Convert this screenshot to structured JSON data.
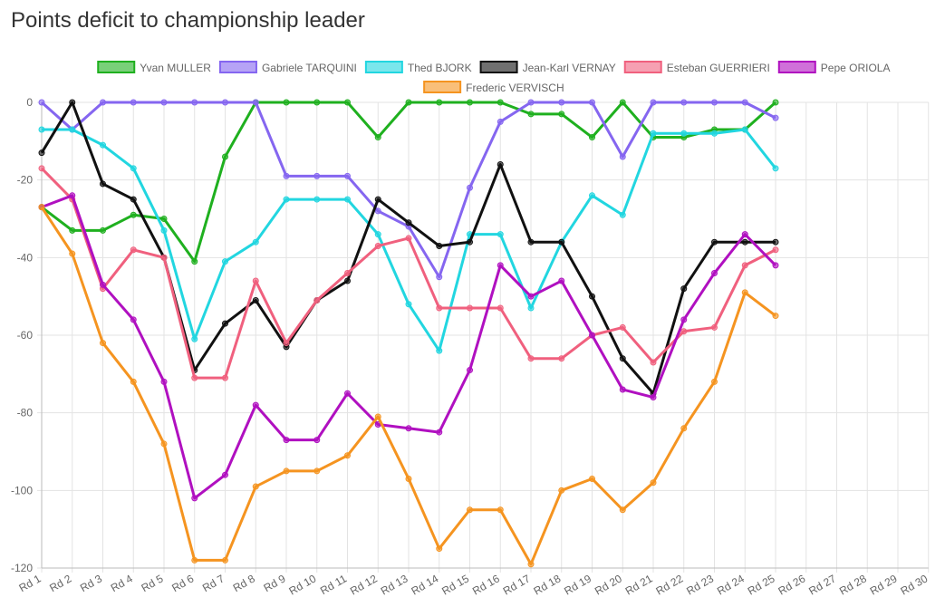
{
  "chart_data": {
    "type": "line",
    "title": "Points deficit to championship leader",
    "categories": [
      "Rd 1",
      "Rd 2",
      "Rd 3",
      "Rd 4",
      "Rd 5",
      "Rd 6",
      "Rd 7",
      "Rd 8",
      "Rd 9",
      "Rd 10",
      "Rd 11",
      "Rd 12",
      "Rd 13",
      "Rd 14",
      "Rd 15",
      "Rd 16",
      "Rd 17",
      "Rd 18",
      "Rd 19",
      "Rd 20",
      "Rd 21",
      "Rd 22",
      "Rd 23",
      "Rd 24",
      "Rd 25",
      "Rd 26",
      "Rd 27",
      "Rd 28",
      "Rd 29",
      "Rd 30"
    ],
    "ylim": [
      -120,
      0
    ],
    "yticks": [
      0,
      -20,
      -40,
      -60,
      -80,
      -100,
      -120
    ],
    "grid": true,
    "legend": "top",
    "series": [
      {
        "name": "Yvan MULLER",
        "color": "#1fb01f",
        "values": [
          -27,
          -33,
          -33,
          -29,
          -30,
          -41,
          -14,
          0,
          0,
          0,
          0,
          -9,
          0,
          0,
          0,
          0,
          -3,
          -3,
          -9,
          0,
          -9,
          -9,
          -7,
          -7,
          0,
          null,
          null,
          null,
          null,
          null
        ]
      },
      {
        "name": "Gabriele TARQUINI",
        "color": "#8566f0",
        "values": [
          0,
          -7,
          0,
          0,
          0,
          0,
          0,
          0,
          -19,
          -19,
          -19,
          -28,
          -32,
          -45,
          -22,
          -5,
          0,
          0,
          0,
          -14,
          0,
          0,
          0,
          0,
          -4,
          null,
          null,
          null,
          null,
          null
        ]
      },
      {
        "name": "Thed BJORK",
        "color": "#22d6e0",
        "values": [
          -7,
          -7,
          -11,
          -17,
          -33,
          -61,
          -41,
          -36,
          -25,
          -25,
          -25,
          -34,
          -52,
          -64,
          -34,
          -34,
          -53,
          -36,
          -24,
          -29,
          -8,
          -8,
          -8,
          -7,
          -17,
          null,
          null,
          null,
          null,
          null
        ]
      },
      {
        "name": "Jean-Karl VERNAY",
        "color": "#111111",
        "values": [
          -13,
          0,
          -21,
          -25,
          -40,
          -69,
          -57,
          -51,
          -63,
          -51,
          -46,
          -25,
          -31,
          -37,
          -36,
          -16,
          -36,
          -36,
          -50,
          -66,
          -75,
          -48,
          -36,
          -36,
          -36,
          null,
          null,
          null,
          null,
          null
        ]
      },
      {
        "name": "Esteban GUERRIERI",
        "color": "#f0607e",
        "values": [
          -17,
          -25,
          -48,
          -38,
          -40,
          -71,
          -71,
          -46,
          -62,
          -51,
          -44,
          -37,
          -35,
          -53,
          -53,
          -53,
          -66,
          -66,
          -60,
          -58,
          -67,
          -59,
          -58,
          -42,
          -38,
          null,
          null,
          null,
          null,
          null
        ]
      },
      {
        "name": "Pepe ORIOLA",
        "color": "#b010c0",
        "values": [
          -27,
          -24,
          -47,
          -56,
          -72,
          -102,
          -96,
          -78,
          -87,
          -87,
          -75,
          -83,
          -84,
          -85,
          -69,
          -42,
          -50,
          -46,
          -60,
          -74,
          -76,
          -56,
          -44,
          -34,
          -42,
          null,
          null,
          null,
          null,
          null
        ]
      },
      {
        "name": "Frederic VERVISCH",
        "color": "#f59420",
        "values": [
          -27,
          -39,
          -62,
          -72,
          -88,
          -118,
          -118,
          -99,
          -95,
          -95,
          -91,
          -81,
          -97,
          -115,
          -105,
          -105,
          -119,
          -100,
          -97,
          -105,
          -98,
          -84,
          -72,
          -49,
          -55,
          null,
          null,
          null,
          null,
          null
        ]
      }
    ]
  }
}
